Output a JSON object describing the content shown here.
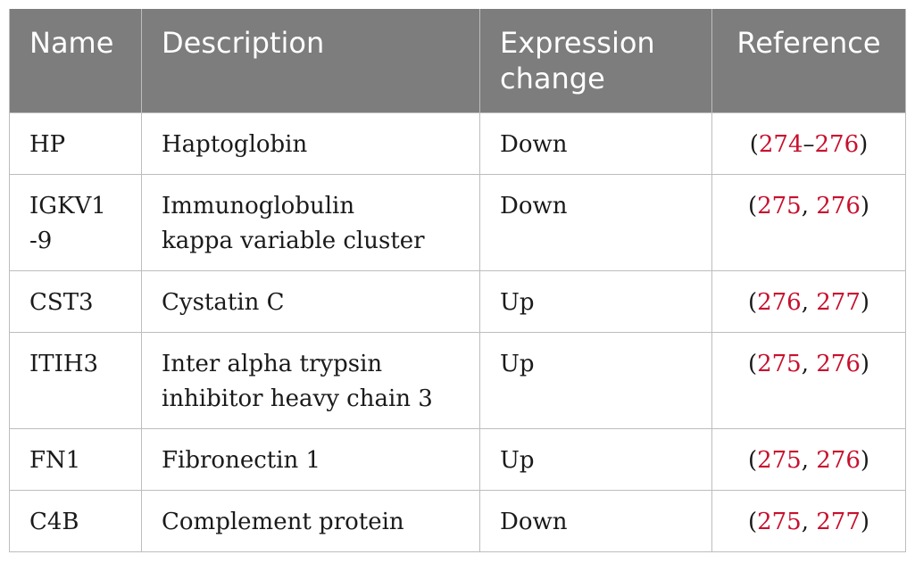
{
  "headers": {
    "name": "Name",
    "description": "Description",
    "expression_line1": "Expression",
    "expression_line2": "change",
    "reference": "Reference"
  },
  "rows": [
    {
      "name": "HP",
      "description": "Haptoglobin",
      "expression": "Down",
      "ref_open": "(",
      "ref_a": "274",
      "ref_sep": "–",
      "ref_b": "276",
      "ref_close": ")"
    },
    {
      "name": "IGKV1-9",
      "description": "Immunoglobulin kappa variable cluster",
      "expression": "Down",
      "ref_open": "(",
      "ref_a": "275",
      "ref_sep": ", ",
      "ref_b": "276",
      "ref_close": ")"
    },
    {
      "name": "CST3",
      "description": "Cystatin C",
      "expression": "Up",
      "ref_open": "(",
      "ref_a": "276",
      "ref_sep": ", ",
      "ref_b": "277",
      "ref_close": ")"
    },
    {
      "name": "ITIH3",
      "description": "Inter alpha trypsin inhibitor heavy chain 3",
      "expression": "Up",
      "ref_open": "(",
      "ref_a": "275",
      "ref_sep": ", ",
      "ref_b": "276",
      "ref_close": ")"
    },
    {
      "name": "FN1",
      "description": "Fibronectin 1",
      "expression": "Up",
      "ref_open": "(",
      "ref_a": "275",
      "ref_sep": ", ",
      "ref_b": "276",
      "ref_close": ")"
    },
    {
      "name": "C4B",
      "description": "Complement protein",
      "expression": "Down",
      "ref_open": "(",
      "ref_a": "275",
      "ref_sep": ", ",
      "ref_b": "277",
      "ref_close": ")"
    }
  ],
  "colors": {
    "header_bg": "#7d7d7d",
    "header_text": "#ffffff",
    "link": "#c8102e",
    "border": "#bdbdbd"
  }
}
